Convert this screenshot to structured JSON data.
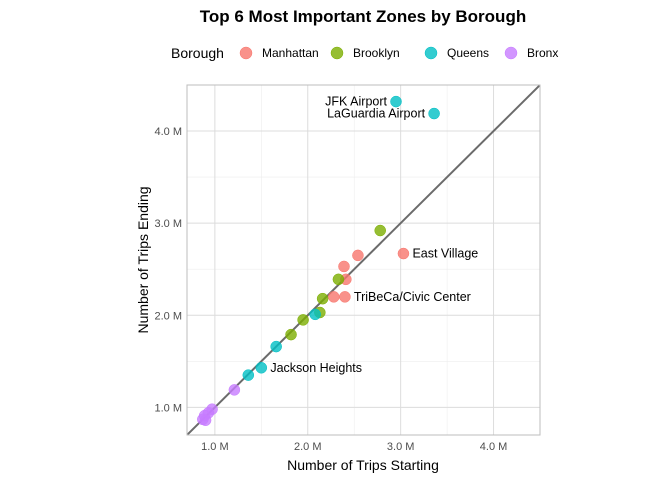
{
  "chart_data": {
    "type": "scatter",
    "title": "Top 6 Most Important Zones by Borough",
    "xlabel": "Number of Trips Starting",
    "ylabel": "Number of Trips Ending",
    "xlim": [
      0.7,
      4.5
    ],
    "ylim": [
      0.7,
      4.5
    ],
    "x_ticks": [
      {
        "value": 1.0,
        "label": "1.0 M"
      },
      {
        "value": 2.0,
        "label": "2.0 M"
      },
      {
        "value": 3.0,
        "label": "3.0 M"
      },
      {
        "value": 4.0,
        "label": "4.0 M"
      }
    ],
    "y_ticks": [
      {
        "value": 1.0,
        "label": "1.0 M"
      },
      {
        "value": 2.0,
        "label": "2.0 M"
      },
      {
        "value": 3.0,
        "label": "3.0 M"
      },
      {
        "value": 4.0,
        "label": "4.0 M"
      }
    ],
    "grid": true,
    "reference_line": "y = x",
    "legend": {
      "title": "Borough",
      "placement": "top"
    },
    "series": [
      {
        "name": "Manhattan",
        "color": "#F8766D",
        "points": [
          {
            "x": 3.03,
            "y": 2.67
          },
          {
            "x": 2.54,
            "y": 2.65
          },
          {
            "x": 2.39,
            "y": 2.53
          },
          {
            "x": 2.41,
            "y": 2.39
          },
          {
            "x": 2.4,
            "y": 2.2
          },
          {
            "x": 2.28,
            "y": 2.2
          }
        ]
      },
      {
        "name": "Brooklyn",
        "color": "#7CAE00",
        "points": [
          {
            "x": 2.78,
            "y": 2.92
          },
          {
            "x": 2.33,
            "y": 2.39
          },
          {
            "x": 2.16,
            "y": 2.18
          },
          {
            "x": 2.13,
            "y": 2.03
          },
          {
            "x": 1.95,
            "y": 1.95
          },
          {
            "x": 1.82,
            "y": 1.79
          }
        ]
      },
      {
        "name": "Queens",
        "color": "#00BFC4",
        "points": [
          {
            "x": 2.95,
            "y": 4.32
          },
          {
            "x": 3.36,
            "y": 4.19
          },
          {
            "x": 2.08,
            "y": 2.01
          },
          {
            "x": 1.66,
            "y": 1.66
          },
          {
            "x": 1.5,
            "y": 1.43
          },
          {
            "x": 1.36,
            "y": 1.35
          }
        ]
      },
      {
        "name": "Bronx",
        "color": "#C77CFF",
        "points": [
          {
            "x": 1.21,
            "y": 1.19
          },
          {
            "x": 0.97,
            "y": 0.98
          },
          {
            "x": 0.93,
            "y": 0.94
          },
          {
            "x": 0.89,
            "y": 0.91
          },
          {
            "x": 0.87,
            "y": 0.87
          },
          {
            "x": 0.9,
            "y": 0.86
          }
        ]
      }
    ],
    "annotations": [
      {
        "text": "JFK Airport",
        "x": 2.95,
        "y": 4.32,
        "side": "left"
      },
      {
        "text": "LaGuardia Airport",
        "x": 3.36,
        "y": 4.19,
        "side": "left"
      },
      {
        "text": "East Village",
        "x": 3.03,
        "y": 2.67,
        "side": "right"
      },
      {
        "text": "TriBeCa/Civic Center",
        "x": 2.4,
        "y": 2.2,
        "side": "right"
      },
      {
        "text": "Jackson Heights",
        "x": 1.5,
        "y": 1.43,
        "side": "right"
      }
    ]
  }
}
